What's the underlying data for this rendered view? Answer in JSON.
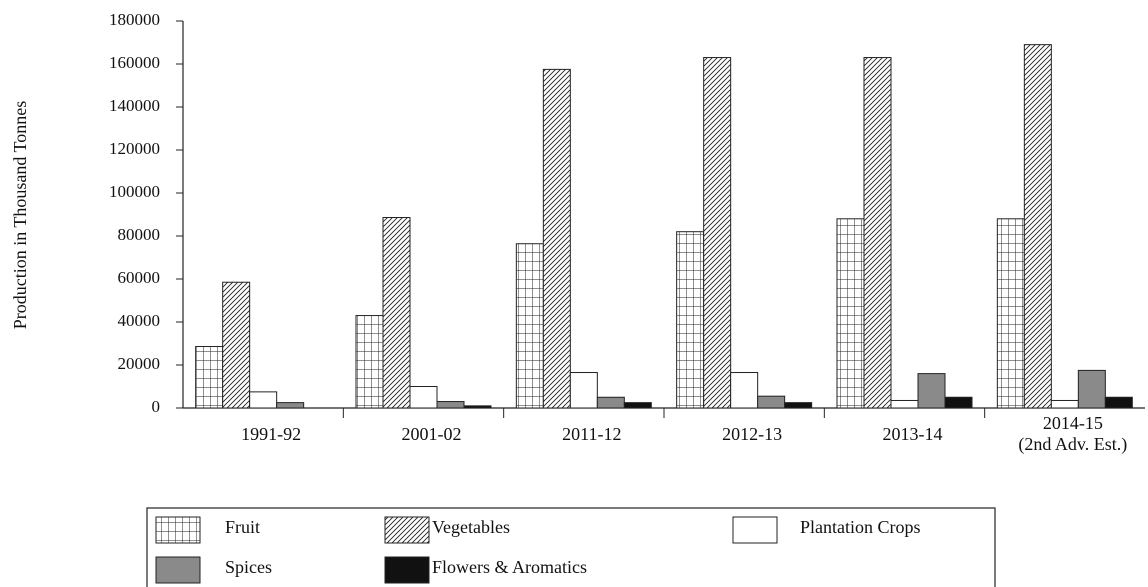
{
  "chart_data": {
    "type": "bar",
    "y_label": "Production in Thousand Tonnes",
    "categories": [
      "1991-92",
      "2001-02",
      "2011-12",
      "2012-13",
      "2013-14",
      "2014-15\n(2nd Adv. Est.)"
    ],
    "series": [
      {
        "name": "Fruit",
        "color": "#ffffff",
        "pattern": "grid",
        "values": [
          28600,
          43000,
          76400,
          82000,
          88000,
          88000
        ]
      },
      {
        "name": "Vegetables",
        "color": "#ffffff",
        "pattern": "hatch",
        "values": [
          58500,
          88600,
          157500,
          163000,
          163000,
          169000
        ]
      },
      {
        "name": "Plantation Crops",
        "color": "#ffffff",
        "values": [
          7500,
          10000,
          16500,
          16500,
          3500,
          3500
        ]
      },
      {
        "name": "Spices",
        "color": "#8a8a8a",
        "values": [
          2500,
          3000,
          5000,
          5500,
          16000,
          17500
        ]
      },
      {
        "name": "Flowers & Aromatics",
        "color": "#111111",
        "values": [
          0,
          1000,
          2500,
          2500,
          5000,
          5000
        ]
      }
    ],
    "ylim": [
      0,
      180000
    ],
    "yticks": [
      0,
      20000,
      40000,
      60000,
      80000,
      100000,
      120000,
      140000,
      160000,
      180000
    ]
  }
}
